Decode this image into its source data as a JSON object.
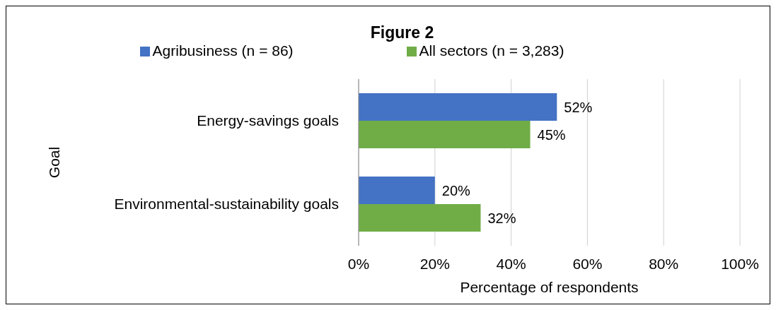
{
  "chart_data": {
    "type": "bar",
    "orientation": "horizontal",
    "title": "Figure 2",
    "xlabel": "Percentage of respondents",
    "ylabel": "Goal",
    "categories": [
      "Energy-savings goals",
      "Environmental-sustainability goals"
    ],
    "series": [
      {
        "name": "Agribusiness (n = 86)",
        "color": "#4472c4",
        "values": [
          52,
          20
        ],
        "value_labels": [
          "52%",
          "20%"
        ]
      },
      {
        "name": "All sectors (n = 3,283)",
        "color": "#70ad47",
        "values": [
          45,
          32
        ],
        "value_labels": [
          "45%",
          "32%"
        ]
      }
    ],
    "xlim": [
      0,
      100
    ],
    "xticks": [
      {
        "value": 0,
        "label": "0%"
      },
      {
        "value": 20,
        "label": "20%"
      },
      {
        "value": 40,
        "label": "40%"
      },
      {
        "value": 60,
        "label": "60%"
      },
      {
        "value": 80,
        "label": "80%"
      },
      {
        "value": 100,
        "label": "100%"
      }
    ],
    "grid": "x",
    "legend": "top"
  }
}
